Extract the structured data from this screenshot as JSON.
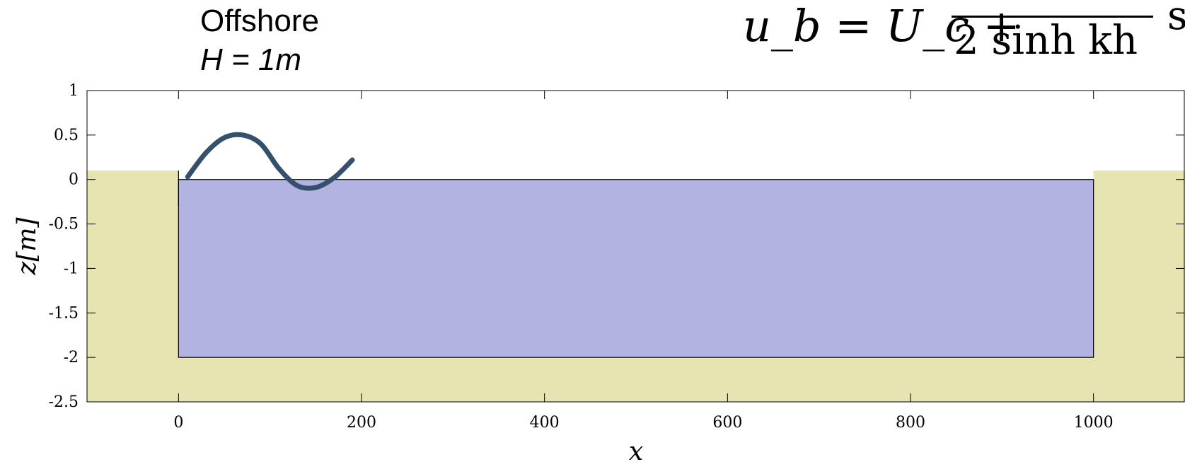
{
  "annotations": {
    "title": "Offshore",
    "wave_height": "H = 1m"
  },
  "formula": {
    "lhs": "u_b = U_c +",
    "denominator": "2 sinh kh",
    "trailing": "sin"
  },
  "chart_data": {
    "type": "area",
    "xlabel": "x",
    "ylabel": "z[m]",
    "xlim": [
      -100,
      1100
    ],
    "ylim": [
      -2.5,
      1
    ],
    "x_ticks": [
      0,
      200,
      400,
      600,
      800,
      1000
    ],
    "x_tick_labels": [
      "0",
      "200",
      "400",
      "600",
      "800",
      "1000"
    ],
    "y_ticks": [
      1,
      0.5,
      0,
      -0.5,
      -1,
      -1.5,
      -2,
      -2.5
    ],
    "y_tick_labels": [
      "1",
      "0.5",
      "0",
      "-0.5",
      "-1",
      "-1.5",
      "-2",
      "-2.5"
    ],
    "grid": false,
    "series": [
      {
        "role": "sediment",
        "color": "#e6e4b1",
        "x": [
          -100,
          0,
          0,
          1000,
          1000,
          1100
        ],
        "y": [
          0.1,
          0.1,
          -2,
          -2,
          0.1,
          0.1
        ]
      },
      {
        "role": "water",
        "color": "#b2b2e3",
        "x": [
          0,
          1000
        ],
        "y_top": [
          0,
          0
        ],
        "y_bottom": [
          -2,
          -2
        ]
      }
    ],
    "wave_sketch": {
      "color": "#34506b",
      "x": [
        10,
        30,
        50,
        70,
        90,
        110,
        130,
        150,
        170,
        190
      ],
      "y": [
        0.03,
        0.3,
        0.47,
        0.5,
        0.4,
        0.12,
        -0.07,
        -0.09,
        0.02,
        0.22
      ]
    }
  }
}
